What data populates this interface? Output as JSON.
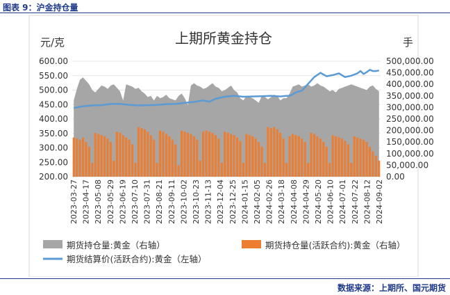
{
  "figure_label": "图表 9：沪金持仓量",
  "source": "数据来源：上期所、国元期货",
  "colors": {
    "total_oi": "#a6a6a6",
    "active_oi": "#ed7d31",
    "price": "#5b9bd5"
  },
  "chart_data": {
    "type": "bar+area+line",
    "title": "上期所黄金持仓",
    "ylabel_left": "元/克",
    "ylabel_right": "手",
    "ylim_left": [
      200,
      600
    ],
    "yticks_left": [
      "200.00",
      "250.00",
      "300.00",
      "350.00",
      "400.00",
      "450.00",
      "500.00",
      "550.00",
      "600.00"
    ],
    "ylim_right": [
      0,
      500000
    ],
    "yticks_right": [
      "0.00",
      "50,000.00",
      "100,000.00",
      "150,000.00",
      "200,000.00",
      "250,000.00",
      "300,000.00",
      "350,000.00",
      "400,000.00",
      "450,000.00",
      "500,000.00"
    ],
    "x_tick_labels": [
      "2023-03-27",
      "2023-04-17",
      "2023-05-08",
      "2023-05-29",
      "2023-06-19",
      "2023-07-10",
      "2023-07-31",
      "2023-08-21",
      "2023-09-11",
      "2023-10-02",
      "2023-10-23",
      "2023-11-13",
      "2023-12-04",
      "2023-12-25",
      "2024-01-15",
      "2024-02-05",
      "2024-02-26",
      "2024-03-18",
      "2024-04-08",
      "2024-04-29",
      "2024-05-20",
      "2024-06-10",
      "2024-07-01",
      "2024-07-22",
      "2024-08-12",
      "2024-09-02"
    ],
    "legend": [
      {
        "name": "期货持仓量:黄金（右轴）",
        "style": "area"
      },
      {
        "name": "期货持仓量(活跃合约):黄金（右轴）",
        "style": "bar"
      },
      {
        "name": "期货结算价(活跃合约):黄金（左轴）",
        "style": "line"
      }
    ],
    "series": [
      {
        "name": "期货持仓量:黄金（右轴）",
        "axis": "right",
        "points": [
          [
            0,
            330000
          ],
          [
            1,
            380000
          ],
          [
            2,
            420000
          ],
          [
            3,
            430000
          ],
          [
            4,
            415000
          ],
          [
            5,
            400000
          ],
          [
            6,
            375000
          ],
          [
            7,
            365000
          ],
          [
            8,
            380000
          ],
          [
            9,
            395000
          ],
          [
            10,
            390000
          ],
          [
            11,
            380000
          ],
          [
            12,
            395000
          ],
          [
            13,
            400000
          ],
          [
            14,
            385000
          ],
          [
            15,
            370000
          ],
          [
            16,
            330000
          ],
          [
            17,
            400000
          ],
          [
            18,
            395000
          ],
          [
            19,
            390000
          ],
          [
            20,
            380000
          ],
          [
            21,
            385000
          ],
          [
            22,
            370000
          ],
          [
            23,
            360000
          ],
          [
            24,
            345000
          ],
          [
            25,
            350000
          ],
          [
            26,
            330000
          ],
          [
            27,
            350000
          ],
          [
            28,
            340000
          ],
          [
            29,
            345000
          ],
          [
            30,
            355000
          ],
          [
            31,
            340000
          ],
          [
            32,
            335000
          ],
          [
            33,
            330000
          ],
          [
            34,
            350000
          ],
          [
            35,
            360000
          ],
          [
            36,
            340000
          ],
          [
            37,
            310000
          ],
          [
            38,
            395000
          ],
          [
            39,
            405000
          ],
          [
            40,
            395000
          ],
          [
            41,
            390000
          ],
          [
            42,
            380000
          ],
          [
            43,
            385000
          ],
          [
            44,
            395000
          ],
          [
            45,
            405000
          ],
          [
            46,
            390000
          ],
          [
            47,
            385000
          ],
          [
            48,
            370000
          ],
          [
            49,
            375000
          ],
          [
            50,
            385000
          ],
          [
            51,
            395000
          ],
          [
            52,
            375000
          ],
          [
            53,
            365000
          ],
          [
            54,
            340000
          ],
          [
            55,
            330000
          ],
          [
            56,
            350000
          ],
          [
            57,
            345000
          ],
          [
            58,
            340000
          ],
          [
            59,
            330000
          ],
          [
            60,
            320000
          ],
          [
            61,
            350000
          ],
          [
            62,
            345000
          ],
          [
            63,
            335000
          ],
          [
            64,
            345000
          ],
          [
            65,
            355000
          ],
          [
            66,
            350000
          ],
          [
            67,
            330000
          ],
          [
            68,
            340000
          ],
          [
            69,
            340000
          ],
          [
            70,
            360000
          ],
          [
            71,
            390000
          ],
          [
            72,
            395000
          ],
          [
            73,
            400000
          ],
          [
            74,
            390000
          ],
          [
            75,
            395000
          ],
          [
            76,
            400000
          ],
          [
            77,
            390000
          ],
          [
            78,
            395000
          ],
          [
            79,
            405000
          ],
          [
            80,
            395000
          ],
          [
            81,
            390000
          ],
          [
            82,
            380000
          ],
          [
            83,
            370000
          ],
          [
            84,
            375000
          ],
          [
            85,
            365000
          ],
          [
            86,
            380000
          ],
          [
            87,
            385000
          ],
          [
            88,
            390000
          ],
          [
            89,
            395000
          ],
          [
            90,
            400000
          ],
          [
            91,
            395000
          ],
          [
            92,
            390000
          ],
          [
            93,
            385000
          ],
          [
            94,
            380000
          ],
          [
            95,
            375000
          ],
          [
            96,
            390000
          ],
          [
            97,
            395000
          ],
          [
            98,
            380000
          ],
          [
            99,
            370000
          ]
        ]
      },
      {
        "name": "期货持仓量(活跃合约):黄金（右轴）",
        "axis": "right",
        "points": [
          [
            0,
            170000
          ],
          [
            1,
            165000
          ],
          [
            2,
            160000
          ],
          [
            3,
            170000
          ],
          [
            4,
            150000
          ],
          [
            5,
            130000
          ],
          [
            6,
            60000
          ],
          [
            7,
            190000
          ],
          [
            8,
            185000
          ],
          [
            9,
            180000
          ],
          [
            10,
            175000
          ],
          [
            11,
            165000
          ],
          [
            12,
            150000
          ],
          [
            13,
            70000
          ],
          [
            14,
            195000
          ],
          [
            15,
            190000
          ],
          [
            16,
            180000
          ],
          [
            17,
            170000
          ],
          [
            18,
            160000
          ],
          [
            19,
            140000
          ],
          [
            20,
            60000
          ],
          [
            21,
            215000
          ],
          [
            22,
            210000
          ],
          [
            23,
            205000
          ],
          [
            24,
            195000
          ],
          [
            25,
            180000
          ],
          [
            26,
            160000
          ],
          [
            27,
            60000
          ],
          [
            28,
            200000
          ],
          [
            29,
            195000
          ],
          [
            30,
            185000
          ],
          [
            31,
            175000
          ],
          [
            32,
            160000
          ],
          [
            33,
            140000
          ],
          [
            34,
            50000
          ],
          [
            35,
            200000
          ],
          [
            36,
            195000
          ],
          [
            37,
            190000
          ],
          [
            38,
            185000
          ],
          [
            39,
            175000
          ],
          [
            40,
            160000
          ],
          [
            41,
            70000
          ],
          [
            42,
            195000
          ],
          [
            43,
            200000
          ],
          [
            44,
            195000
          ],
          [
            45,
            190000
          ],
          [
            46,
            180000
          ],
          [
            47,
            165000
          ],
          [
            48,
            60000
          ],
          [
            49,
            195000
          ],
          [
            50,
            190000
          ],
          [
            51,
            185000
          ],
          [
            52,
            180000
          ],
          [
            53,
            170000
          ],
          [
            54,
            155000
          ],
          [
            55,
            60000
          ],
          [
            56,
            185000
          ],
          [
            57,
            180000
          ],
          [
            58,
            175000
          ],
          [
            59,
            165000
          ],
          [
            60,
            150000
          ],
          [
            61,
            130000
          ],
          [
            62,
            60000
          ],
          [
            63,
            215000
          ],
          [
            64,
            210000
          ],
          [
            65,
            215000
          ],
          [
            66,
            205000
          ],
          [
            67,
            190000
          ],
          [
            68,
            165000
          ],
          [
            69,
            60000
          ],
          [
            70,
            175000
          ],
          [
            71,
            185000
          ],
          [
            72,
            180000
          ],
          [
            73,
            175000
          ],
          [
            74,
            165000
          ],
          [
            75,
            150000
          ],
          [
            76,
            60000
          ],
          [
            77,
            190000
          ],
          [
            78,
            185000
          ],
          [
            79,
            175000
          ],
          [
            80,
            165000
          ],
          [
            81,
            150000
          ],
          [
            82,
            130000
          ],
          [
            83,
            60000
          ],
          [
            84,
            180000
          ],
          [
            85,
            175000
          ],
          [
            86,
            170000
          ],
          [
            87,
            165000
          ],
          [
            88,
            155000
          ],
          [
            89,
            140000
          ],
          [
            90,
            60000
          ],
          [
            91,
            175000
          ],
          [
            92,
            170000
          ],
          [
            93,
            165000
          ],
          [
            94,
            160000
          ],
          [
            95,
            150000
          ],
          [
            96,
            130000
          ],
          [
            97,
            110000
          ],
          [
            98,
            90000
          ],
          [
            99,
            70000
          ]
        ]
      },
      {
        "name": "期货结算价(活跃合约):黄金（左轴）",
        "axis": "left",
        "points": [
          [
            0,
            438
          ],
          [
            3,
            444
          ],
          [
            6,
            447
          ],
          [
            9,
            448
          ],
          [
            12,
            452
          ],
          [
            15,
            452
          ],
          [
            18,
            449
          ],
          [
            21,
            447
          ],
          [
            24,
            448
          ],
          [
            27,
            449
          ],
          [
            30,
            451
          ],
          [
            33,
            452
          ],
          [
            36,
            456
          ],
          [
            39,
            459
          ],
          [
            42,
            464
          ],
          [
            44,
            460
          ],
          [
            46,
            470
          ],
          [
            49,
            477
          ],
          [
            52,
            480
          ],
          [
            55,
            477
          ],
          [
            58,
            478
          ],
          [
            61,
            479
          ],
          [
            64,
            480
          ],
          [
            67,
            478
          ],
          [
            69,
            480
          ],
          [
            70,
            480
          ],
          [
            71,
            485
          ],
          [
            72,
            492
          ],
          [
            74,
            498
          ],
          [
            76,
            522
          ],
          [
            78,
            545
          ],
          [
            80,
            560
          ],
          [
            82,
            548
          ],
          [
            84,
            552
          ],
          [
            86,
            558
          ],
          [
            88,
            545
          ],
          [
            90,
            550
          ],
          [
            92,
            558
          ],
          [
            93,
            566
          ],
          [
            94,
            556
          ],
          [
            95,
            562
          ],
          [
            96,
            570
          ],
          [
            97,
            566
          ],
          [
            98,
            566
          ],
          [
            99,
            568
          ]
        ]
      }
    ]
  }
}
